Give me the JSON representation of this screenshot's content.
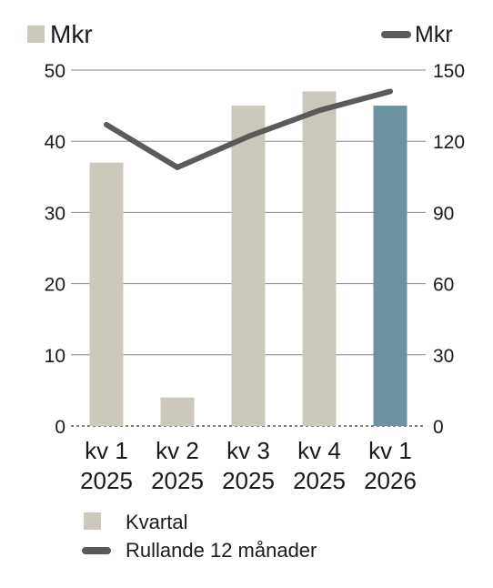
{
  "chart_data": {
    "type": "bar",
    "categories": [
      [
        "kv 1",
        "2025"
      ],
      [
        "kv 2",
        "2025"
      ],
      [
        "kv 3",
        "2025"
      ],
      [
        "kv 4",
        "2025"
      ],
      [
        "kv 1",
        "2026"
      ]
    ],
    "series": [
      {
        "name": "Kvartal",
        "type": "bar",
        "axis": "left",
        "values": [
          37,
          4,
          45,
          47,
          45
        ],
        "highlight_index": 4
      },
      {
        "name": "Rullande 12 månader",
        "type": "line",
        "axis": "right",
        "values": [
          127,
          109,
          122,
          133,
          141
        ]
      }
    ],
    "left_axis": {
      "unit": "Mkr",
      "ylim": [
        0,
        50
      ],
      "ticks": [
        0,
        10,
        20,
        30,
        40,
        50
      ]
    },
    "right_axis": {
      "unit": "Mkr",
      "ylim": [
        0,
        150
      ],
      "ticks": [
        0,
        30,
        60,
        90,
        120,
        150
      ]
    },
    "grid": true,
    "legend_position": "bottom-left",
    "colors": {
      "bar": "#ccc8bc",
      "bar_highlight": "#6a929f",
      "line": "#5a5a5a",
      "grid": "#8a8a8a"
    }
  }
}
